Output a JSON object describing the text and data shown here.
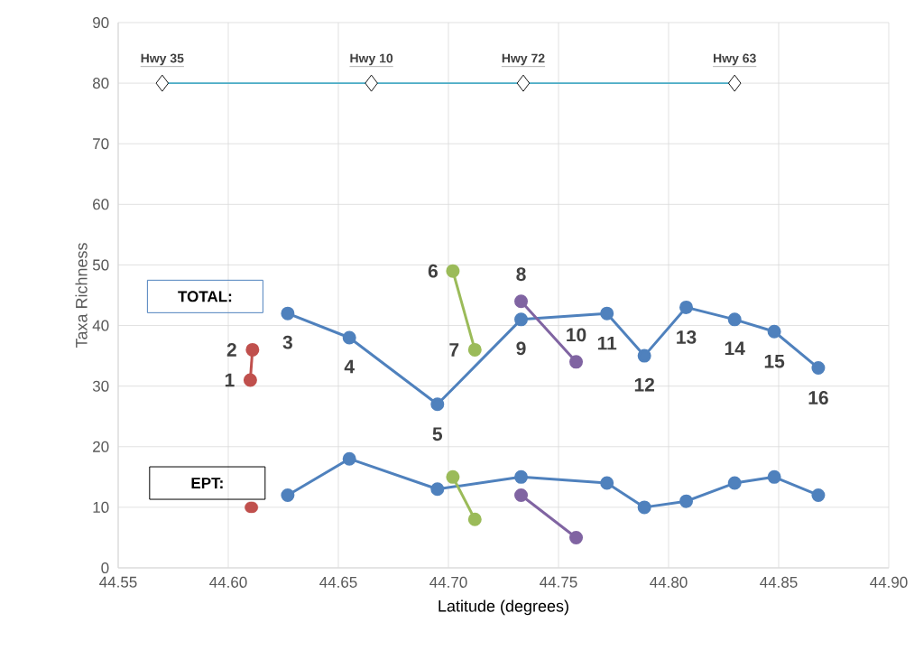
{
  "chart_data": {
    "type": "line",
    "xlabel": "Latitude (degrees)",
    "ylabel": "Taxa Richness",
    "xlim": [
      44.55,
      44.9
    ],
    "ylim": [
      0,
      90
    ],
    "xticks": [
      44.55,
      {
        "value": 44.6,
        "label": "44.60"
      },
      44.65,
      {
        "value": 44.7,
        "label": "44.70"
      },
      44.75,
      {
        "value": 44.8,
        "label": "44.80"
      },
      44.85,
      {
        "value": 44.9,
        "label": "44.90"
      }
    ],
    "yticks": [
      0,
      10,
      20,
      30,
      40,
      50,
      60,
      70,
      80,
      90
    ],
    "grid": true,
    "marker": "circle",
    "line_style": "solid",
    "series": [
      {
        "color": "#c0504d",
        "x": [
          44.61,
          44.611
        ],
        "values": [
          31,
          36
        ]
      },
      {
        "color": "#4f81bd",
        "x": [
          44.627,
          44.655,
          44.695,
          44.733,
          44.772,
          44.789,
          44.808,
          44.83,
          44.848,
          44.868
        ],
        "values": [
          42,
          38,
          27,
          41,
          42,
          35,
          43,
          41,
          39,
          33
        ]
      },
      {
        "color": "#9bbb59",
        "x": [
          44.702,
          44.712
        ],
        "values": [
          49,
          36
        ]
      },
      {
        "color": "#8064a2",
        "x": [
          44.733,
          44.758
        ],
        "values": [
          44,
          34
        ]
      },
      {
        "type": "scatter",
        "color": "#c0504d",
        "x": [
          44.61,
          44.611
        ],
        "values": [
          10,
          10
        ]
      },
      {
        "color": "#4f81bd",
        "x": [
          44.627,
          44.655,
          44.695,
          44.733,
          44.772,
          44.789,
          44.808,
          44.83,
          44.848,
          44.868
        ],
        "values": [
          12,
          18,
          13,
          15,
          14,
          10,
          11,
          14,
          15,
          12
        ]
      },
      {
        "color": "#9bbb59",
        "x": [
          44.702,
          44.712
        ],
        "values": [
          15,
          8
        ]
      },
      {
        "color": "#8064a2",
        "x": [
          44.733,
          44.758
        ],
        "values": [
          12,
          5
        ]
      },
      {
        "color": "#4bacc6",
        "marker": "diamond",
        "x": [
          44.57,
          44.665,
          44.734,
          44.83
        ],
        "values": [
          80,
          80,
          80,
          80
        ],
        "value_labels": [
          "Hwy 35",
          "Hwy 10",
          "Hwy 72",
          "Hwy 63"
        ]
      }
    ],
    "annotations": [
      "TOTAL:",
      "EPT:",
      {
        "text": "1",
        "x": 44.61,
        "y": 31
      },
      {
        "text": "2",
        "x": 44.611,
        "y": 36
      },
      {
        "text": "3",
        "x": 44.627,
        "y": 42
      },
      {
        "text": "4",
        "x": 44.655,
        "y": 38
      },
      {
        "text": "5",
        "x": 44.695,
        "y": 27
      },
      {
        "text": "6",
        "x": 44.702,
        "y": 49
      },
      {
        "text": "7",
        "x": 44.712,
        "y": 36
      },
      {
        "text": "8",
        "x": 44.733,
        "y": 44
      },
      {
        "text": "9",
        "x": 44.733,
        "y": 41
      },
      {
        "text": "10",
        "x": 44.758,
        "y": 34
      },
      {
        "text": "11",
        "x": 44.772,
        "y": 42
      },
      {
        "text": "12",
        "x": 44.789,
        "y": 35
      },
      {
        "text": "13",
        "x": 44.808,
        "y": 43
      },
      {
        "text": "14",
        "x": 44.83,
        "y": 41
      },
      {
        "text": "15",
        "x": 44.848,
        "y": 39
      },
      {
        "text": "16",
        "x": 44.868,
        "y": 33
      }
    ]
  }
}
